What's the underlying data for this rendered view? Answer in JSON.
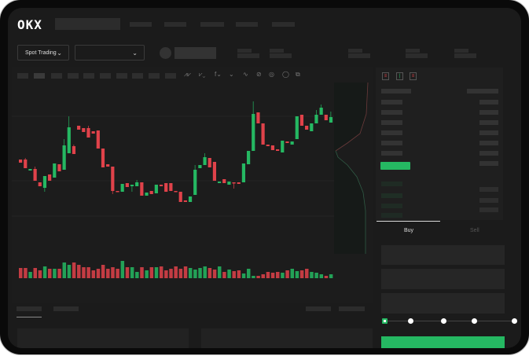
{
  "header": {
    "logo": "OKX",
    "search_placeholder": "",
    "nav_items": [
      "",
      "",
      "",
      "",
      ""
    ]
  },
  "toolbar": {
    "market_type": "Spot Trading",
    "pair_select": "",
    "icons": [
      "indicator-icon",
      "indicator-icon",
      "fx-icon",
      "line-icon",
      "draw-icon",
      "magnet-icon",
      "settings-icon",
      "fullscreen-icon"
    ]
  },
  "order_book": {
    "view_icons": [
      "both-sides-icon",
      "bids-icon",
      "asks-icon"
    ]
  },
  "trade_form": {
    "tabs": [
      {
        "label": "Buy",
        "active": true
      },
      {
        "label": "Sell",
        "active": false
      }
    ],
    "slider_value": 0,
    "slider_stops": 5
  },
  "colors": {
    "up": "#25b862",
    "down": "#e0424a",
    "background": "#1b1b1b",
    "frame": "#0a0a0a"
  },
  "chart_data": {
    "type": "candlestick",
    "candles": [
      [
        97,
        97,
        93,
        93
      ],
      [
        97,
        99,
        86,
        86
      ],
      [
        83,
        85,
        83,
        85
      ],
      [
        85,
        88,
        70,
        70
      ],
      [
        68,
        68,
        63,
        63
      ],
      [
        61,
        76,
        56,
        76
      ],
      [
        78,
        78,
        70,
        70
      ],
      [
        74,
        92,
        74,
        92
      ],
      [
        91,
        91,
        82,
        82
      ],
      [
        84,
        123,
        84,
        115
      ],
      [
        105,
        152,
        105,
        138
      ],
      [
        114,
        116,
        104,
        104
      ],
      [
        140,
        140,
        135,
        135
      ],
      [
        137,
        137,
        132,
        132
      ],
      [
        137,
        140,
        125,
        125
      ],
      [
        133,
        133,
        130,
        130
      ],
      [
        134,
        134,
        111,
        111
      ],
      [
        111,
        111,
        87,
        87
      ],
      [
        91,
        91,
        88,
        88
      ],
      [
        88,
        88,
        53,
        57
      ],
      [
        57,
        57,
        56,
        56
      ],
      [
        56,
        66,
        56,
        66
      ],
      [
        67,
        67,
        62,
        62
      ],
      [
        63,
        65,
        56,
        65
      ],
      [
        63,
        71,
        63,
        68
      ],
      [
        68,
        68,
        51,
        51
      ],
      [
        51,
        55,
        51,
        55
      ],
      [
        57,
        57,
        53,
        53
      ],
      [
        54,
        65,
        54,
        65
      ],
      [
        65,
        65,
        63,
        63
      ],
      [
        67,
        67,
        56,
        56
      ],
      [
        67,
        67,
        57,
        57
      ],
      [
        57,
        57,
        56,
        56
      ],
      [
        56,
        56,
        43,
        43
      ],
      [
        45,
        45,
        43,
        43
      ],
      [
        43,
        50,
        43,
        50
      ],
      [
        52,
        90,
        52,
        84
      ],
      [
        86,
        90,
        86,
        90
      ],
      [
        90,
        105,
        90,
        100
      ],
      [
        99,
        99,
        87,
        87
      ],
      [
        94,
        94,
        70,
        70
      ],
      [
        67,
        69,
        67,
        69
      ],
      [
        72,
        72,
        67,
        67
      ],
      [
        65,
        69,
        65,
        69
      ],
      [
        68,
        68,
        60,
        67
      ],
      [
        68,
        68,
        66,
        66
      ],
      [
        68,
        92,
        68,
        92
      ],
      [
        91,
        108,
        91,
        108
      ],
      [
        108,
        171,
        108,
        155
      ],
      [
        157,
        157,
        143,
        143
      ],
      [
        143,
        143,
        116,
        116
      ],
      [
        116,
        116,
        114,
        114
      ],
      [
        115,
        115,
        109,
        109
      ],
      [
        110,
        110,
        108,
        108
      ],
      [
        106,
        121,
        106,
        121
      ],
      [
        120,
        120,
        118,
        118
      ],
      [
        116,
        120,
        116,
        120
      ],
      [
        123,
        152,
        123,
        152
      ],
      [
        154,
        154,
        140,
        140
      ],
      [
        140,
        140,
        135,
        135
      ],
      [
        133,
        143,
        133,
        143
      ],
      [
        143,
        160,
        143,
        154
      ],
      [
        154,
        167,
        154,
        163
      ],
      [
        154,
        154,
        147,
        147
      ],
      [
        144,
        158,
        144,
        151
      ]
    ],
    "volumes": [
      13,
      13,
      8,
      13,
      10,
      15,
      12,
      12,
      12,
      20,
      17,
      20,
      17,
      14,
      14,
      10,
      12,
      17,
      12,
      14,
      12,
      22,
      14,
      14,
      8,
      14,
      10,
      14,
      14,
      15,
      10,
      12,
      15,
      12,
      15,
      13,
      11,
      13,
      15,
      13,
      11,
      15,
      8,
      11,
      9,
      10,
      6,
      12,
      3,
      3,
      5,
      8,
      7,
      8,
      7,
      10,
      12,
      9,
      10,
      12,
      8,
      7,
      5,
      3,
      5
    ]
  }
}
